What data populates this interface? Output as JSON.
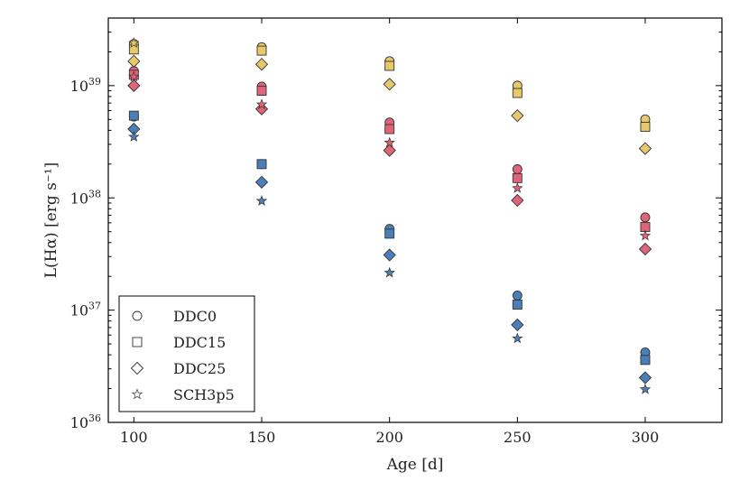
{
  "chart_data": {
    "type": "scatter",
    "xlabel": "Age [d]",
    "ylabel": "L(Hα) [erg s⁻¹]",
    "xlim": [
      90,
      330
    ],
    "ylim": [
      1e+36,
      4e+39
    ],
    "yscale": "log",
    "x_ticks": [
      100,
      150,
      200,
      250,
      300
    ],
    "x_tick_labels": [
      "100",
      "150",
      "200",
      "250",
      "300"
    ],
    "y_ticks": [
      1e+36,
      1e+37,
      1e+38,
      1e+39
    ],
    "y_tick_labels": [
      {
        "base": "10",
        "exp": "36"
      },
      {
        "base": "10",
        "exp": "37"
      },
      {
        "base": "10",
        "exp": "38"
      },
      {
        "base": "10",
        "exp": "39"
      }
    ],
    "legend_position": "bottom-left",
    "x": [
      100,
      150,
      200,
      250,
      300
    ],
    "series": [
      {
        "name": "DDC0",
        "marker": "circle",
        "legend_label": "DDC0",
        "points": [
          {
            "color": "#e8c96a",
            "values": [
              2.35e+39,
              2.2e+39,
              1.65e+39,
              1e+39,
              5e+38
            ]
          },
          {
            "color": "#e06478",
            "values": [
              1.35e+39,
              9.8e+38,
              4.7e+38,
              1.8e+38,
              6.7e+37
            ]
          },
          {
            "color": "#4a7fb8",
            "values": [
              5.3e+38,
              2e+38,
              5.3e+37,
              1.35e+37,
              4.2e+36
            ]
          }
        ]
      },
      {
        "name": "DDC15",
        "marker": "square",
        "legend_label": "DDC15",
        "points": [
          {
            "color": "#e8c96a",
            "values": [
              2.1e+39,
              2.05e+39,
              1.5e+39,
              8.6e+38,
              4.3e+38
            ]
          },
          {
            "color": "#e06478",
            "values": [
              1.25e+39,
              9e+38,
              4.1e+38,
              1.5e+38,
              5.5e+37
            ]
          },
          {
            "color": "#4a7fb8",
            "values": [
              5.4e+38,
              2e+38,
              4.8e+37,
              1.12e+37,
              3.6e+36
            ]
          }
        ]
      },
      {
        "name": "DDC25",
        "marker": "diamond",
        "legend_label": "DDC25",
        "points": [
          {
            "color": "#e8c96a",
            "values": [
              1.65e+39,
              1.55e+39,
              1.03e+39,
              5.4e+38,
              2.75e+38
            ]
          },
          {
            "color": "#e06478",
            "values": [
              1e+39,
              6.2e+38,
              2.65e+38,
              9.5e+37,
              3.5e+37
            ]
          },
          {
            "color": "#4a7fb8",
            "values": [
              4.1e+38,
              1.38e+38,
              3.1e+37,
              7.4e+36,
              2.5e+36
            ]
          }
        ]
      },
      {
        "name": "SCH3p5",
        "marker": "star",
        "legend_label": "SCH3p5",
        "points": [
          {
            "color": "#e8c96a",
            "values": [
              2.4e+39
            ]
          },
          {
            "color": "#e06478",
            "values": [
              1.2e+39,
              6.8e+38,
              3.1e+38,
              1.22e+38,
              4.6e+37
            ]
          },
          {
            "color": "#4a7fb8",
            "values": [
              3.5e+38,
              9.4e+37,
              2.15e+37,
              5.6e+36,
              1.97e+36
            ]
          }
        ]
      }
    ]
  }
}
